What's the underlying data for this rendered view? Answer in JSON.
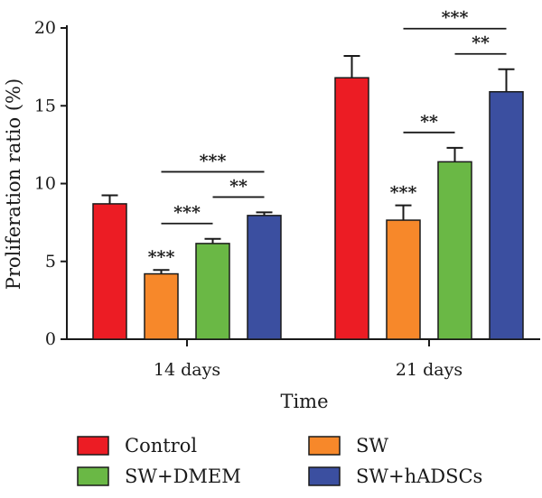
{
  "chart_data": {
    "type": "bar",
    "xlabel": "Time",
    "ylabel": "Proliferation ratio (%)",
    "ylim": [
      0,
      20
    ],
    "yticks": [
      0,
      5,
      10,
      15,
      20
    ],
    "categories": [
      "14 days",
      "21 days"
    ],
    "series": [
      {
        "name": "Control",
        "color": "#ec1c24",
        "values": [
          8.7,
          16.8
        ],
        "errors": [
          0.55,
          1.4
        ]
      },
      {
        "name": "SW",
        "color": "#f7882a",
        "values": [
          4.2,
          7.65
        ],
        "errors": [
          0.25,
          0.95
        ]
      },
      {
        "name": "SW+DMEM",
        "color": "#6ab845",
        "values": [
          6.15,
          11.4
        ],
        "errors": [
          0.3,
          0.9
        ]
      },
      {
        "name": "SW+hADSCs",
        "color": "#3b4fa0",
        "values": [
          7.95,
          15.9
        ],
        "errors": [
          0.2,
          1.45
        ]
      }
    ],
    "significance": [
      {
        "category": 0,
        "series": 1,
        "label": "***"
      },
      {
        "category": 0,
        "from_series": 1,
        "to_series": 2,
        "label": "***"
      },
      {
        "category": 0,
        "from_series": 2,
        "to_series": 3,
        "label": "**"
      },
      {
        "category": 0,
        "from_series": 1,
        "to_series": 3,
        "label": "***"
      },
      {
        "category": 1,
        "series": 1,
        "label": "***"
      },
      {
        "category": 1,
        "from_series": 1,
        "to_series": 2,
        "label": "**"
      },
      {
        "category": 1,
        "from_series": 2,
        "to_series": 3,
        "label": "**"
      },
      {
        "category": 1,
        "from_series": 1,
        "to_series": 3,
        "label": "***"
      }
    ],
    "grid": false,
    "legend_position": "bottom"
  }
}
